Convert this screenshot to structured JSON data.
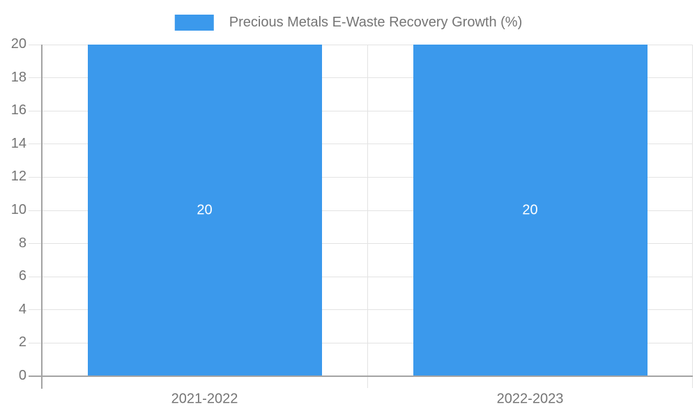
{
  "chart_data": {
    "type": "bar",
    "title": "Precious Metals E-Waste Recovery Growth (%)",
    "categories": [
      "2021-2022",
      "2022-2023"
    ],
    "values": [
      20,
      20
    ],
    "bar_value_labels": [
      "20",
      "20"
    ],
    "y_tick_labels": [
      "0",
      "2",
      "4",
      "6",
      "8",
      "10",
      "12",
      "14",
      "16",
      "18",
      "20"
    ],
    "yticks": [
      0,
      2,
      4,
      6,
      8,
      10,
      12,
      14,
      16,
      18,
      20
    ],
    "ylim": [
      0,
      20
    ],
    "xlabel": "",
    "ylabel": "",
    "grid": true,
    "legend_position": "top"
  },
  "colors": {
    "bar": "#3B99EC",
    "grid": "#E3E3E3",
    "axis": "#A3A3A3",
    "text": "#757575",
    "bar_label": "#FFFFFF",
    "background": "#FFFFFF"
  }
}
